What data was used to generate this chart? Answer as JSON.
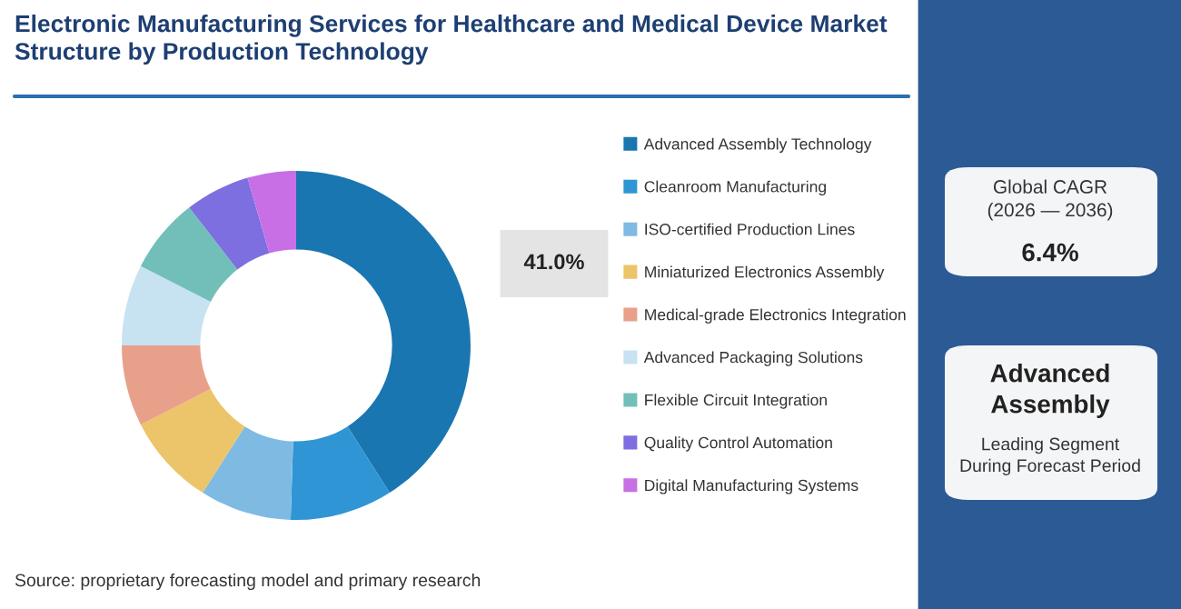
{
  "chart_data": {
    "type": "donut",
    "title": "Electronic Manufacturing Services for Healthcare and Medical Device Market\nStructure by Production Technology",
    "categories": [
      "Advanced Assembly Technology",
      "Cleanroom Manufacturing",
      "ISO-certified Production Lines",
      "Miniaturized Electronics Assembly",
      "Medical-grade Electronics Integration",
      "Advanced Packaging Solutions",
      "Flexible Circuit Integration",
      "Quality Control Automation",
      "Digital Manufacturing Systems"
    ],
    "values": [
      41.0,
      9.5,
      8.5,
      8.5,
      7.5,
      7.5,
      7.0,
      6.0,
      4.5
    ],
    "colors": [
      "#1a76b0",
      "#2f95d4",
      "#7fbae3",
      "#ecc469",
      "#e9a08a",
      "#c7e3f2",
      "#72bfb9",
      "#7d6fe0",
      "#c86fe6"
    ],
    "value_labels": [
      "41.0%",
      null,
      null,
      null,
      null,
      null,
      null,
      null,
      null
    ],
    "legend": "right",
    "annotations": [
      "Global CAGR\n(2026 — 2036)",
      "6.4%",
      "Advanced\nAssembly",
      "Leading Segment\nDuring Forecast Period",
      "Source: proprietary forecasting model and primary research"
    ]
  }
}
